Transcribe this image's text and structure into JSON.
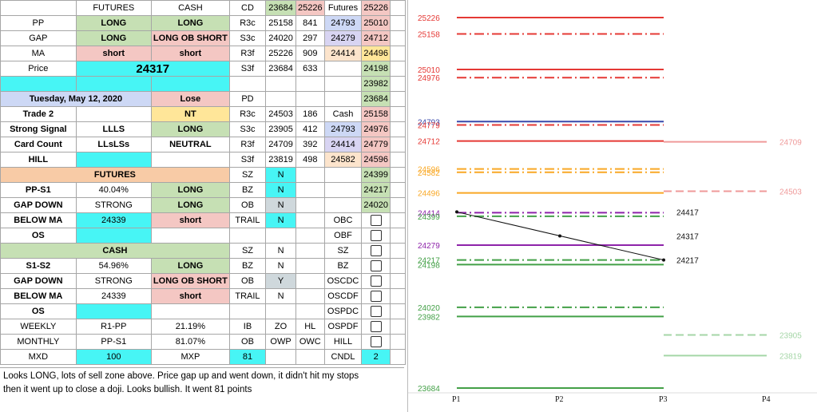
{
  "sheet": {
    "header": {
      "futures": "FUTURES",
      "cash": "CASH",
      "cd": "CD",
      "cd_a": "23684",
      "cd_b": "25226",
      "cd_lbl": "Futures",
      "cd_v": "25226"
    },
    "pp": {
      "label": "PP",
      "futures": "LONG",
      "cash": "LONG",
      "code": "R3c",
      "a": "25158",
      "b": "841",
      "c": "24793",
      "v": "25010"
    },
    "gap": {
      "label": "GAP",
      "futures": "LONG",
      "cash": "LONG OB SHORT",
      "code": "S3c",
      "a": "24020",
      "b": "297",
      "c": "24279",
      "v": "24712"
    },
    "ma": {
      "label": "MA",
      "futures": "short",
      "cash": "short",
      "code": "R3f",
      "a": "25226",
      "b": "909",
      "c": "24414",
      "v": "24496"
    },
    "price": {
      "label": "Price",
      "value": "24317",
      "code": "S3f",
      "a": "23684",
      "b": "633",
      "v": "24198"
    },
    "blank_v": "23982",
    "date_row": {
      "date": "Tuesday, May 12, 2020",
      "result": "Lose",
      "code": "PD",
      "v": "23684"
    },
    "trade": {
      "label": "Trade 2",
      "value": "NT",
      "code": "R3c",
      "a": "24503",
      "b": "186",
      "c": "Cash",
      "v": "25158"
    },
    "strong": {
      "label": "Strong Signal",
      "a": "LLLS",
      "b": "LONG",
      "code": "S3c",
      "x": "23905",
      "y": "412",
      "c": "24793",
      "v": "24976"
    },
    "card": {
      "label": "Card Count",
      "a": "LLsLSs",
      "b": "NEUTRAL",
      "code": "R3f",
      "x": "24709",
      "y": "392",
      "c": "24414",
      "v": "24779"
    },
    "hill": {
      "label": "HILL",
      "code": "S3f",
      "x": "23819",
      "y": "498",
      "c": "24582",
      "v": "24596"
    },
    "fut_section": {
      "title": "FUTURES",
      "code": "SZ",
      "n": "N",
      "v": "24399"
    },
    "pp_s1": {
      "label": "PP-S1",
      "pct": "40.04%",
      "dir": "LONG",
      "code": "BZ",
      "n": "N",
      "v": "24217"
    },
    "gap_down1": {
      "label": "GAP DOWN",
      "strength": "STRONG",
      "dir": "LONG",
      "code": "OB",
      "n": "N",
      "v": "24020"
    },
    "below_ma1": {
      "label": "BELOW MA",
      "value": "24339",
      "dir": "short",
      "code": "TRAIL",
      "n": "N",
      "chk": "OBC"
    },
    "os1": {
      "label": "OS",
      "chk": "OBF"
    },
    "cash_section": {
      "title": "CASH",
      "code": "SZ",
      "n": "N",
      "chk": "SZ"
    },
    "s1_s2": {
      "label": "S1-S2",
      "pct": "54.96%",
      "dir": "LONG",
      "code": "BZ",
      "n": "N",
      "chk": "BZ"
    },
    "gap_down2": {
      "label": "GAP DOWN",
      "strength": "STRONG",
      "dir": "LONG OB SHORT",
      "code": "OB",
      "n": "Y",
      "chk": "OSCDC"
    },
    "below_ma2": {
      "label": "BELOW MA",
      "value": "24339",
      "dir": "short",
      "code": "TRAIL",
      "n": "N",
      "chk": "OSCDF"
    },
    "os2": {
      "label": "OS",
      "chk": "OSPDC"
    },
    "weekly": {
      "label": "WEEKLY",
      "a": "R1-PP",
      "b": "21.19%",
      "code": "IB",
      "x": "ZO",
      "y": "HL",
      "chk": "OSPDF"
    },
    "monthly": {
      "label": "MONTHLY",
      "a": "PP-S1",
      "b": "81.07%",
      "code": "OB",
      "x": "OWP",
      "y": "OWC",
      "chk": "HILL"
    },
    "mxd": {
      "label": "MXD",
      "value": "100",
      "label2": "MXP",
      "value2": "81",
      "code": "CNDL",
      "v": "2"
    },
    "notes_line1": "Looks LONG, lots of sell zone above. Price gap up and went down, it didn't hit my stops",
    "notes_line2": "then it went up to close a doji. Looks bullish. It went 81 points"
  },
  "chart_data": {
    "type": "line",
    "x_labels": [
      "P1",
      "P2",
      "P3",
      "P4"
    ],
    "ylim": [
      23684,
      25226
    ],
    "price_path": {
      "x": [
        "P1",
        "P2",
        "P3"
      ],
      "y": [
        24417,
        24317,
        24217
      ]
    },
    "point_labels": [
      "24417",
      "24317",
      "24217"
    ],
    "levels": [
      {
        "value": 25226,
        "label": "25226",
        "color": "#e53935",
        "style": "solid",
        "span": "P1-P3"
      },
      {
        "value": 25158,
        "label": "25158",
        "color": "#e53935",
        "style": "dashdot",
        "span": "P1-P3"
      },
      {
        "value": 25010,
        "label": "25010",
        "color": "#e53935",
        "style": "solid",
        "span": "P1-P3"
      },
      {
        "value": 24976,
        "label": "24976",
        "color": "#e53935",
        "style": "dashdot",
        "span": "P1-P3"
      },
      {
        "value": 24793,
        "label": "24793",
        "color": "#3949ab",
        "style": "solid",
        "span": "P1-P3"
      },
      {
        "value": 24779,
        "label": "24779",
        "color": "#e53935",
        "style": "dashdot",
        "span": "P1-P3"
      },
      {
        "value": 24712,
        "label": "24712",
        "color": "#e53935",
        "style": "solid",
        "span": "P1-P3"
      },
      {
        "value": 24709,
        "label": "24709",
        "color": "#ef9a9a",
        "style": "solid",
        "span": "P3-P4"
      },
      {
        "value": 24596,
        "label": "24596",
        "color": "#f9a825",
        "style": "dashdot",
        "span": "P1-P3"
      },
      {
        "value": 24582,
        "label": "24582",
        "color": "#f9a825",
        "style": "dashdot",
        "span": "P1-P3"
      },
      {
        "value": 24503,
        "label": "24503",
        "color": "#ef9a9a",
        "style": "dashed",
        "span": "P3-P4"
      },
      {
        "value": 24496,
        "label": "24496",
        "color": "#f9a825",
        "style": "solid",
        "span": "P1-P3"
      },
      {
        "value": 24414,
        "label": "24414",
        "color": "#8e24aa",
        "style": "dashdot",
        "span": "P1-P3"
      },
      {
        "value": 24399,
        "label": "24399",
        "color": "#43a047",
        "style": "dashdot",
        "span": "P1-P3"
      },
      {
        "value": 24279,
        "label": "24279",
        "color": "#8e24aa",
        "style": "solid",
        "span": "P1-P3"
      },
      {
        "value": 24217,
        "label": "24217",
        "color": "#43a047",
        "style": "dashdot",
        "span": "P1-P3"
      },
      {
        "value": 24198,
        "label": "24198",
        "color": "#43a047",
        "style": "solid",
        "span": "P1-P3"
      },
      {
        "value": 24020,
        "label": "24020",
        "color": "#43a047",
        "style": "dashdot",
        "span": "P1-P3"
      },
      {
        "value": 23982,
        "label": "23982",
        "color": "#43a047",
        "style": "solid",
        "span": "P1-P3"
      },
      {
        "value": 23905,
        "label": "23905",
        "color": "#a5d6a7",
        "style": "dashed",
        "span": "P3-P4"
      },
      {
        "value": 23819,
        "label": "23819",
        "color": "#a5d6a7",
        "style": "solid",
        "span": "P3-P4"
      },
      {
        "value": 23684,
        "label": "23684",
        "color": "#43a047",
        "style": "solid",
        "span": "P1-P3"
      }
    ]
  }
}
